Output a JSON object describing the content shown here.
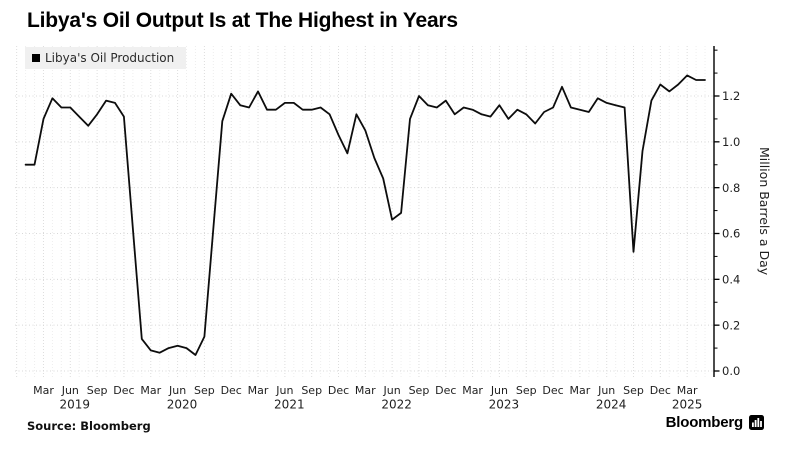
{
  "title": "Libya's Oil Output Is at The Highest in Years",
  "legend": {
    "label": "Libya's Oil Production"
  },
  "source": {
    "text": "Source: Bloomberg"
  },
  "branding": {
    "logo_text": "Bloomberg",
    "logo_icon": "bar-chart-icon"
  },
  "colors": {
    "line": "#0d0d0d",
    "grid_month": "#eeeeee",
    "grid_quarter": "#dddddd",
    "grid_horizontal": "#d8d8d8",
    "axis": "#000000",
    "legend_bg": "#f0f0f0",
    "text": "#1f1f1f"
  },
  "chart_data": {
    "type": "line",
    "title": "Libya's Oil Output Is at The Highest in Years",
    "ylabel": "Million Barrels a Day",
    "xlabel": "",
    "ylim": [
      0,
      1.42
    ],
    "yticks": [
      0.0,
      0.2,
      0.4,
      0.6,
      0.8,
      1.0,
      1.2
    ],
    "grid": true,
    "legend_position": "top-left",
    "x_tick_months": [
      "Mar",
      "Jun",
      "Sep",
      "Dec"
    ],
    "years": [
      "2019",
      "2020",
      "2021",
      "2022",
      "2023",
      "2024",
      "2025"
    ],
    "x": [
      "2019-01",
      "2019-02",
      "2019-03",
      "2019-04",
      "2019-05",
      "2019-06",
      "2019-07",
      "2019-08",
      "2019-09",
      "2019-10",
      "2019-11",
      "2019-12",
      "2020-01",
      "2020-02",
      "2020-03",
      "2020-04",
      "2020-05",
      "2020-06",
      "2020-07",
      "2020-08",
      "2020-09",
      "2020-10",
      "2020-11",
      "2020-12",
      "2021-01",
      "2021-02",
      "2021-03",
      "2021-04",
      "2021-05",
      "2021-06",
      "2021-07",
      "2021-08",
      "2021-09",
      "2021-10",
      "2021-11",
      "2021-12",
      "2022-01",
      "2022-02",
      "2022-03",
      "2022-04",
      "2022-05",
      "2022-06",
      "2022-07",
      "2022-08",
      "2022-09",
      "2022-10",
      "2022-11",
      "2022-12",
      "2023-01",
      "2023-02",
      "2023-03",
      "2023-04",
      "2023-05",
      "2023-06",
      "2023-07",
      "2023-08",
      "2023-09",
      "2023-10",
      "2023-11",
      "2023-12",
      "2024-01",
      "2024-02",
      "2024-03",
      "2024-04",
      "2024-05",
      "2024-06",
      "2024-07",
      "2024-08",
      "2024-09",
      "2024-10",
      "2024-11",
      "2024-12",
      "2025-01",
      "2025-02",
      "2025-03",
      "2025-04",
      "2025-05"
    ],
    "series": [
      {
        "name": "Libya's Oil Production",
        "values": [
          0.9,
          0.9,
          1.1,
          1.19,
          1.15,
          1.15,
          1.11,
          1.07,
          1.12,
          1.18,
          1.17,
          1.11,
          0.62,
          0.14,
          0.09,
          0.08,
          0.1,
          0.11,
          0.1,
          0.07,
          0.15,
          0.62,
          1.09,
          1.21,
          1.16,
          1.15,
          1.22,
          1.14,
          1.14,
          1.17,
          1.17,
          1.14,
          1.14,
          1.15,
          1.12,
          1.03,
          0.95,
          1.12,
          1.05,
          0.93,
          0.84,
          0.66,
          0.69,
          1.1,
          1.2,
          1.16,
          1.15,
          1.18,
          1.12,
          1.15,
          1.14,
          1.12,
          1.11,
          1.16,
          1.1,
          1.14,
          1.12,
          1.08,
          1.13,
          1.15,
          1.24,
          1.15,
          1.14,
          1.13,
          1.19,
          1.17,
          1.16,
          1.15,
          0.52,
          0.96,
          1.18,
          1.25,
          1.22,
          1.25,
          1.29,
          1.27,
          1.27
        ]
      }
    ]
  }
}
